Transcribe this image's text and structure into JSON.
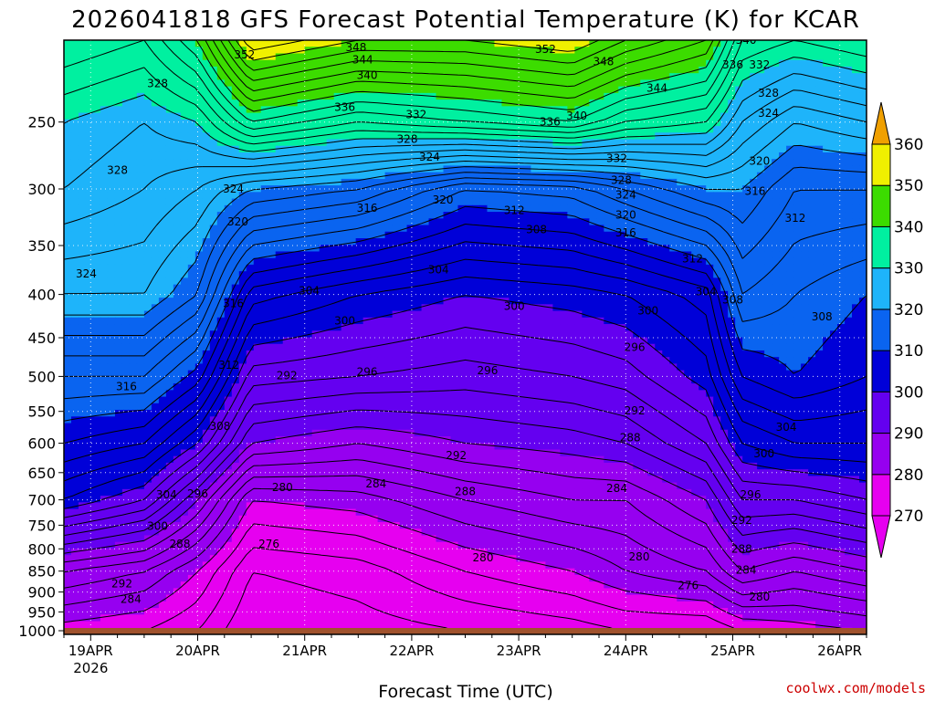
{
  "chart_data": {
    "type": "heatmap",
    "title": "2026041818 GFS Forecast Potential Temperature (K) for KCAR",
    "xlabel": "Forecast Time (UTC)",
    "ylabel": "",
    "credit": "coolwx.com/models",
    "x_ticks": [
      {
        "label": "19APR",
        "sub": "2026",
        "t": 0
      },
      {
        "label": "20APR",
        "t": 24
      },
      {
        "label": "21APR",
        "t": 48
      },
      {
        "label": "22APR",
        "t": 72
      },
      {
        "label": "23APR",
        "t": 96
      },
      {
        "label": "24APR",
        "t": 120
      },
      {
        "label": "25APR",
        "t": 144
      },
      {
        "label": "26APR",
        "t": 168
      }
    ],
    "x_range_hours": [
      -6,
      174
    ],
    "y_axis": "pressure (hPa), log scale, inverted",
    "y_ticks": [
      250,
      300,
      350,
      400,
      450,
      500,
      550,
      600,
      650,
      700,
      750,
      800,
      850,
      900,
      950,
      1000
    ],
    "y_range": [
      200,
      1010
    ],
    "colorbar": {
      "levels": [
        270,
        280,
        290,
        300,
        310,
        320,
        330,
        340,
        350,
        360
      ],
      "colors": [
        "#e600f0",
        "#9600f0",
        "#6400f0",
        "#0000d8",
        "#0a64f0",
        "#1eb4fa",
        "#00f0a0",
        "#3cdc00",
        "#f0f000",
        "#f0a000"
      ],
      "under_color": "#e600f0",
      "over_color": "#f0a000",
      "extend": "both"
    },
    "contour_interval": 2,
    "contour_label_interval": 4,
    "surface_color": "#a0522d",
    "theta_profiles": [
      {
        "t": -6,
        "p": [
          1000,
          850,
          700,
          600,
          500,
          400,
          300,
          250,
          200
        ],
        "theta": [
          279,
          286,
          302,
          308,
          314,
          322,
          328,
          330,
          336
        ]
      },
      {
        "t": 12,
        "p": [
          1000,
          850,
          700,
          600,
          500,
          400,
          300,
          250,
          200
        ],
        "theta": [
          278,
          284,
          298,
          306,
          314,
          322,
          326,
          328,
          334
        ]
      },
      {
        "t": 24,
        "p": [
          1000,
          850,
          700,
          600,
          500,
          400,
          300,
          250,
          200
        ],
        "theta": [
          276,
          280,
          290,
          300,
          309,
          318,
          324,
          330,
          340
        ]
      },
      {
        "t": 36,
        "p": [
          1000,
          850,
          700,
          600,
          500,
          400,
          300,
          250,
          200
        ],
        "theta": [
          272,
          274,
          280,
          290,
          297,
          305,
          320,
          338,
          354
        ]
      },
      {
        "t": 60,
        "p": [
          1000,
          850,
          700,
          600,
          500,
          400,
          300,
          250,
          200
        ],
        "theta": [
          273,
          275,
          281,
          288,
          296,
          302,
          318,
          334,
          350
        ]
      },
      {
        "t": 84,
        "p": [
          1000,
          850,
          700,
          600,
          500,
          400,
          300,
          250,
          200
        ],
        "theta": [
          274,
          278,
          284,
          290,
          295,
          300,
          312,
          336,
          350
        ]
      },
      {
        "t": 108,
        "p": [
          1000,
          850,
          700,
          600,
          500,
          400,
          300,
          250,
          200
        ],
        "theta": [
          275,
          280,
          286,
          291,
          296,
          301,
          313,
          338,
          352
        ]
      },
      {
        "t": 120,
        "p": [
          1000,
          850,
          700,
          600,
          500,
          400,
          300,
          250,
          200
        ],
        "theta": [
          276,
          282,
          286,
          292,
          297,
          302,
          316,
          334,
          348
        ]
      },
      {
        "t": 138,
        "p": [
          1000,
          850,
          700,
          600,
          500,
          400,
          300,
          250,
          200
        ],
        "theta": [
          276,
          284,
          290,
          296,
          301,
          305,
          320,
          332,
          344
        ]
      },
      {
        "t": 146,
        "p": [
          1000,
          850,
          700,
          600,
          500,
          400,
          300,
          250,
          200
        ],
        "theta": [
          278,
          288,
          296,
          302,
          308,
          314,
          320,
          326,
          334
        ]
      },
      {
        "t": 158,
        "p": [
          1000,
          850,
          700,
          600,
          500,
          400,
          300,
          250,
          200
        ],
        "theta": [
          279,
          286,
          296,
          304,
          310,
          312,
          316,
          322,
          332
        ]
      },
      {
        "t": 174,
        "p": [
          1000,
          850,
          700,
          600,
          500,
          400,
          300,
          250,
          200
        ],
        "theta": [
          280,
          288,
          298,
          304,
          308,
          310,
          316,
          324,
          334
        ]
      }
    ],
    "contour_labels": [
      {
        "text": "352",
        "t": 34.5,
        "p": 208
      },
      {
        "text": "348",
        "t": 59.5,
        "p": 204
      },
      {
        "text": "344",
        "t": 61,
        "p": 211
      },
      {
        "text": "340",
        "t": 62,
        "p": 220
      },
      {
        "text": "336",
        "t": 57,
        "p": 240
      },
      {
        "text": "332",
        "t": 73,
        "p": 245
      },
      {
        "text": "328",
        "t": 15,
        "p": 225
      },
      {
        "text": "328",
        "t": 71,
        "p": 262
      },
      {
        "text": "324",
        "t": 76,
        "p": 275
      },
      {
        "text": "352",
        "t": 102,
        "p": 205
      },
      {
        "text": "348",
        "t": 115,
        "p": 212
      },
      {
        "text": "344",
        "t": 127,
        "p": 228
      },
      {
        "text": "336",
        "t": 103,
        "p": 250
      },
      {
        "text": "340",
        "t": 109,
        "p": 246
      },
      {
        "text": "332",
        "t": 118,
        "p": 276
      },
      {
        "text": "328",
        "t": 119,
        "p": 293
      },
      {
        "text": "324",
        "t": 120,
        "p": 305
      },
      {
        "text": "320",
        "t": 120,
        "p": 322
      },
      {
        "text": "316",
        "t": 120,
        "p": 338
      },
      {
        "text": "312",
        "t": 135,
        "p": 363
      },
      {
        "text": "308",
        "t": 144,
        "p": 406
      },
      {
        "text": "304",
        "t": 138,
        "p": 397
      },
      {
        "text": "300",
        "t": 125,
        "p": 418
      },
      {
        "text": "296",
        "t": 122,
        "p": 462
      },
      {
        "text": "292",
        "t": 122,
        "p": 549
      },
      {
        "text": "288",
        "t": 121,
        "p": 591
      },
      {
        "text": "284",
        "t": 118,
        "p": 678
      },
      {
        "text": "280",
        "t": 123,
        "p": 818
      },
      {
        "text": "276",
        "t": 134,
        "p": 884
      },
      {
        "text": "340",
        "t": 147,
        "p": 200
      },
      {
        "text": "336",
        "t": 144,
        "p": 214
      },
      {
        "text": "332",
        "t": 150,
        "p": 214
      },
      {
        "text": "328",
        "t": 152,
        "p": 231
      },
      {
        "text": "324",
        "t": 152,
        "p": 244
      },
      {
        "text": "320",
        "t": 150,
        "p": 278
      },
      {
        "text": "316",
        "t": 149,
        "p": 302
      },
      {
        "text": "312",
        "t": 158,
        "p": 325
      },
      {
        "text": "308",
        "t": 164,
        "p": 425
      },
      {
        "text": "304",
        "t": 156,
        "p": 574
      },
      {
        "text": "300",
        "t": 151,
        "p": 617
      },
      {
        "text": "296",
        "t": 148,
        "p": 690
      },
      {
        "text": "292",
        "t": 146,
        "p": 740
      },
      {
        "text": "288",
        "t": 146,
        "p": 800
      },
      {
        "text": "284",
        "t": 147,
        "p": 848
      },
      {
        "text": "280",
        "t": 150,
        "p": 912
      },
      {
        "text": "328",
        "t": 6,
        "p": 285
      },
      {
        "text": "324",
        "t": 32,
        "p": 300
      },
      {
        "text": "320",
        "t": 33,
        "p": 328
      },
      {
        "text": "324",
        "t": -1,
        "p": 378
      },
      {
        "text": "316",
        "t": 32,
        "p": 410
      },
      {
        "text": "316",
        "t": 8,
        "p": 514
      },
      {
        "text": "312",
        "t": 31,
        "p": 485
      },
      {
        "text": "308",
        "t": 29,
        "p": 573
      },
      {
        "text": "304",
        "t": 17,
        "p": 690
      },
      {
        "text": "300",
        "t": 15,
        "p": 752
      },
      {
        "text": "296",
        "t": 24,
        "p": 689
      },
      {
        "text": "288",
        "t": 20,
        "p": 790
      },
      {
        "text": "292",
        "t": 7,
        "p": 880
      },
      {
        "text": "284",
        "t": 9,
        "p": 918
      },
      {
        "text": "316",
        "t": 62,
        "p": 316
      },
      {
        "text": "320",
        "t": 79,
        "p": 309
      },
      {
        "text": "312",
        "t": 95,
        "p": 318
      },
      {
        "text": "308",
        "t": 100,
        "p": 335
      },
      {
        "text": "304",
        "t": 78,
        "p": 374
      },
      {
        "text": "304",
        "t": 49,
        "p": 396
      },
      {
        "text": "300",
        "t": 57,
        "p": 430
      },
      {
        "text": "300",
        "t": 95,
        "p": 413
      },
      {
        "text": "296",
        "t": 62,
        "p": 494
      },
      {
        "text": "296",
        "t": 89,
        "p": 492
      },
      {
        "text": "292",
        "t": 44,
        "p": 499
      },
      {
        "text": "292",
        "t": 82,
        "p": 620
      },
      {
        "text": "288",
        "t": 84,
        "p": 684
      },
      {
        "text": "284",
        "t": 64,
        "p": 670
      },
      {
        "text": "280",
        "t": 43,
        "p": 677
      },
      {
        "text": "280",
        "t": 88,
        "p": 820
      },
      {
        "text": "276",
        "t": 40,
        "p": 790
      }
    ]
  }
}
